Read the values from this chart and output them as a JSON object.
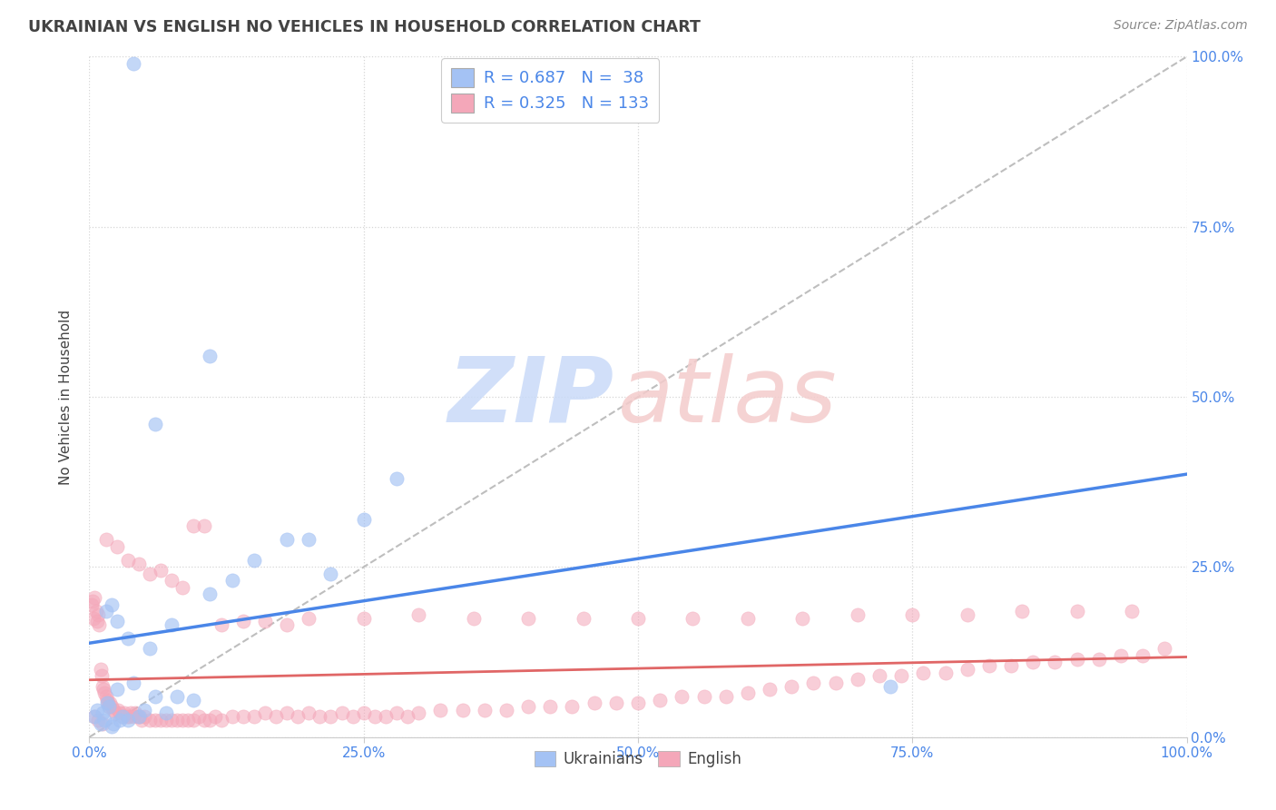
{
  "title": "UKRAINIAN VS ENGLISH NO VEHICLES IN HOUSEHOLD CORRELATION CHART",
  "source": "Source: ZipAtlas.com",
  "ylabel": "No Vehicles in Household",
  "xlabel": "",
  "legend_label1": "Ukrainians",
  "legend_label2": "English",
  "R1": 0.687,
  "N1": 38,
  "R2": 0.325,
  "N2": 133,
  "color_blue": "#a4c2f4",
  "color_pink": "#f4a7b9",
  "color_blue_line": "#4a86e8",
  "color_pink_line": "#e06666",
  "bg_color": "#ffffff",
  "grid_color": "#cccccc",
  "title_color": "#434343",
  "axis_tick_color": "#4a86e8",
  "watermark_zip_color": "#c9daf8",
  "watermark_atlas_color": "#f4cccc",
  "blue_x": [
    0.005,
    0.007,
    0.01,
    0.012,
    0.014,
    0.016,
    0.018,
    0.02,
    0.022,
    0.025,
    0.028,
    0.03,
    0.035,
    0.04,
    0.045,
    0.05,
    0.06,
    0.07,
    0.08,
    0.095,
    0.11,
    0.13,
    0.15,
    0.18,
    0.2,
    0.22,
    0.25,
    0.28,
    0.11,
    0.06,
    0.02,
    0.015,
    0.025,
    0.035,
    0.055,
    0.075,
    0.04,
    0.73
  ],
  "blue_y": [
    0.03,
    0.04,
    0.02,
    0.035,
    0.025,
    0.05,
    0.045,
    0.015,
    0.02,
    0.07,
    0.025,
    0.03,
    0.025,
    0.08,
    0.03,
    0.04,
    0.06,
    0.035,
    0.06,
    0.055,
    0.21,
    0.23,
    0.26,
    0.29,
    0.29,
    0.24,
    0.32,
    0.38,
    0.56,
    0.46,
    0.195,
    0.185,
    0.17,
    0.145,
    0.13,
    0.165,
    0.99,
    0.075
  ],
  "pink_x": [
    0.002,
    0.003,
    0.004,
    0.005,
    0.006,
    0.007,
    0.008,
    0.009,
    0.01,
    0.011,
    0.012,
    0.013,
    0.014,
    0.015,
    0.016,
    0.017,
    0.018,
    0.019,
    0.02,
    0.022,
    0.024,
    0.026,
    0.028,
    0.03,
    0.032,
    0.034,
    0.036,
    0.038,
    0.04,
    0.042,
    0.044,
    0.046,
    0.048,
    0.05,
    0.055,
    0.06,
    0.065,
    0.07,
    0.075,
    0.08,
    0.085,
    0.09,
    0.095,
    0.1,
    0.105,
    0.11,
    0.115,
    0.12,
    0.13,
    0.14,
    0.15,
    0.16,
    0.17,
    0.18,
    0.19,
    0.2,
    0.21,
    0.22,
    0.23,
    0.24,
    0.25,
    0.26,
    0.27,
    0.28,
    0.29,
    0.3,
    0.32,
    0.34,
    0.36,
    0.38,
    0.4,
    0.42,
    0.44,
    0.46,
    0.48,
    0.5,
    0.52,
    0.54,
    0.56,
    0.58,
    0.6,
    0.62,
    0.64,
    0.66,
    0.68,
    0.7,
    0.72,
    0.74,
    0.76,
    0.78,
    0.8,
    0.82,
    0.84,
    0.86,
    0.88,
    0.9,
    0.92,
    0.94,
    0.96,
    0.98,
    0.015,
    0.025,
    0.035,
    0.045,
    0.055,
    0.065,
    0.075,
    0.085,
    0.095,
    0.105,
    0.12,
    0.14,
    0.16,
    0.18,
    0.2,
    0.25,
    0.3,
    0.35,
    0.4,
    0.45,
    0.5,
    0.55,
    0.6,
    0.65,
    0.7,
    0.75,
    0.8,
    0.85,
    0.9,
    0.95,
    0.005,
    0.008,
    0.012
  ],
  "pink_y": [
    0.195,
    0.2,
    0.175,
    0.205,
    0.185,
    0.17,
    0.18,
    0.165,
    0.1,
    0.09,
    0.075,
    0.07,
    0.065,
    0.06,
    0.055,
    0.05,
    0.045,
    0.05,
    0.045,
    0.04,
    0.035,
    0.04,
    0.035,
    0.03,
    0.035,
    0.03,
    0.03,
    0.035,
    0.03,
    0.035,
    0.03,
    0.03,
    0.025,
    0.03,
    0.025,
    0.025,
    0.025,
    0.025,
    0.025,
    0.025,
    0.025,
    0.025,
    0.025,
    0.03,
    0.025,
    0.025,
    0.03,
    0.025,
    0.03,
    0.03,
    0.03,
    0.035,
    0.03,
    0.035,
    0.03,
    0.035,
    0.03,
    0.03,
    0.035,
    0.03,
    0.035,
    0.03,
    0.03,
    0.035,
    0.03,
    0.035,
    0.04,
    0.04,
    0.04,
    0.04,
    0.045,
    0.045,
    0.045,
    0.05,
    0.05,
    0.05,
    0.055,
    0.06,
    0.06,
    0.06,
    0.065,
    0.07,
    0.075,
    0.08,
    0.08,
    0.085,
    0.09,
    0.09,
    0.095,
    0.095,
    0.1,
    0.105,
    0.105,
    0.11,
    0.11,
    0.115,
    0.115,
    0.12,
    0.12,
    0.13,
    0.29,
    0.28,
    0.26,
    0.255,
    0.24,
    0.245,
    0.23,
    0.22,
    0.31,
    0.31,
    0.165,
    0.17,
    0.17,
    0.165,
    0.175,
    0.175,
    0.18,
    0.175,
    0.175,
    0.175,
    0.175,
    0.175,
    0.175,
    0.175,
    0.18,
    0.18,
    0.18,
    0.185,
    0.185,
    0.185,
    0.03,
    0.025,
    0.02
  ]
}
